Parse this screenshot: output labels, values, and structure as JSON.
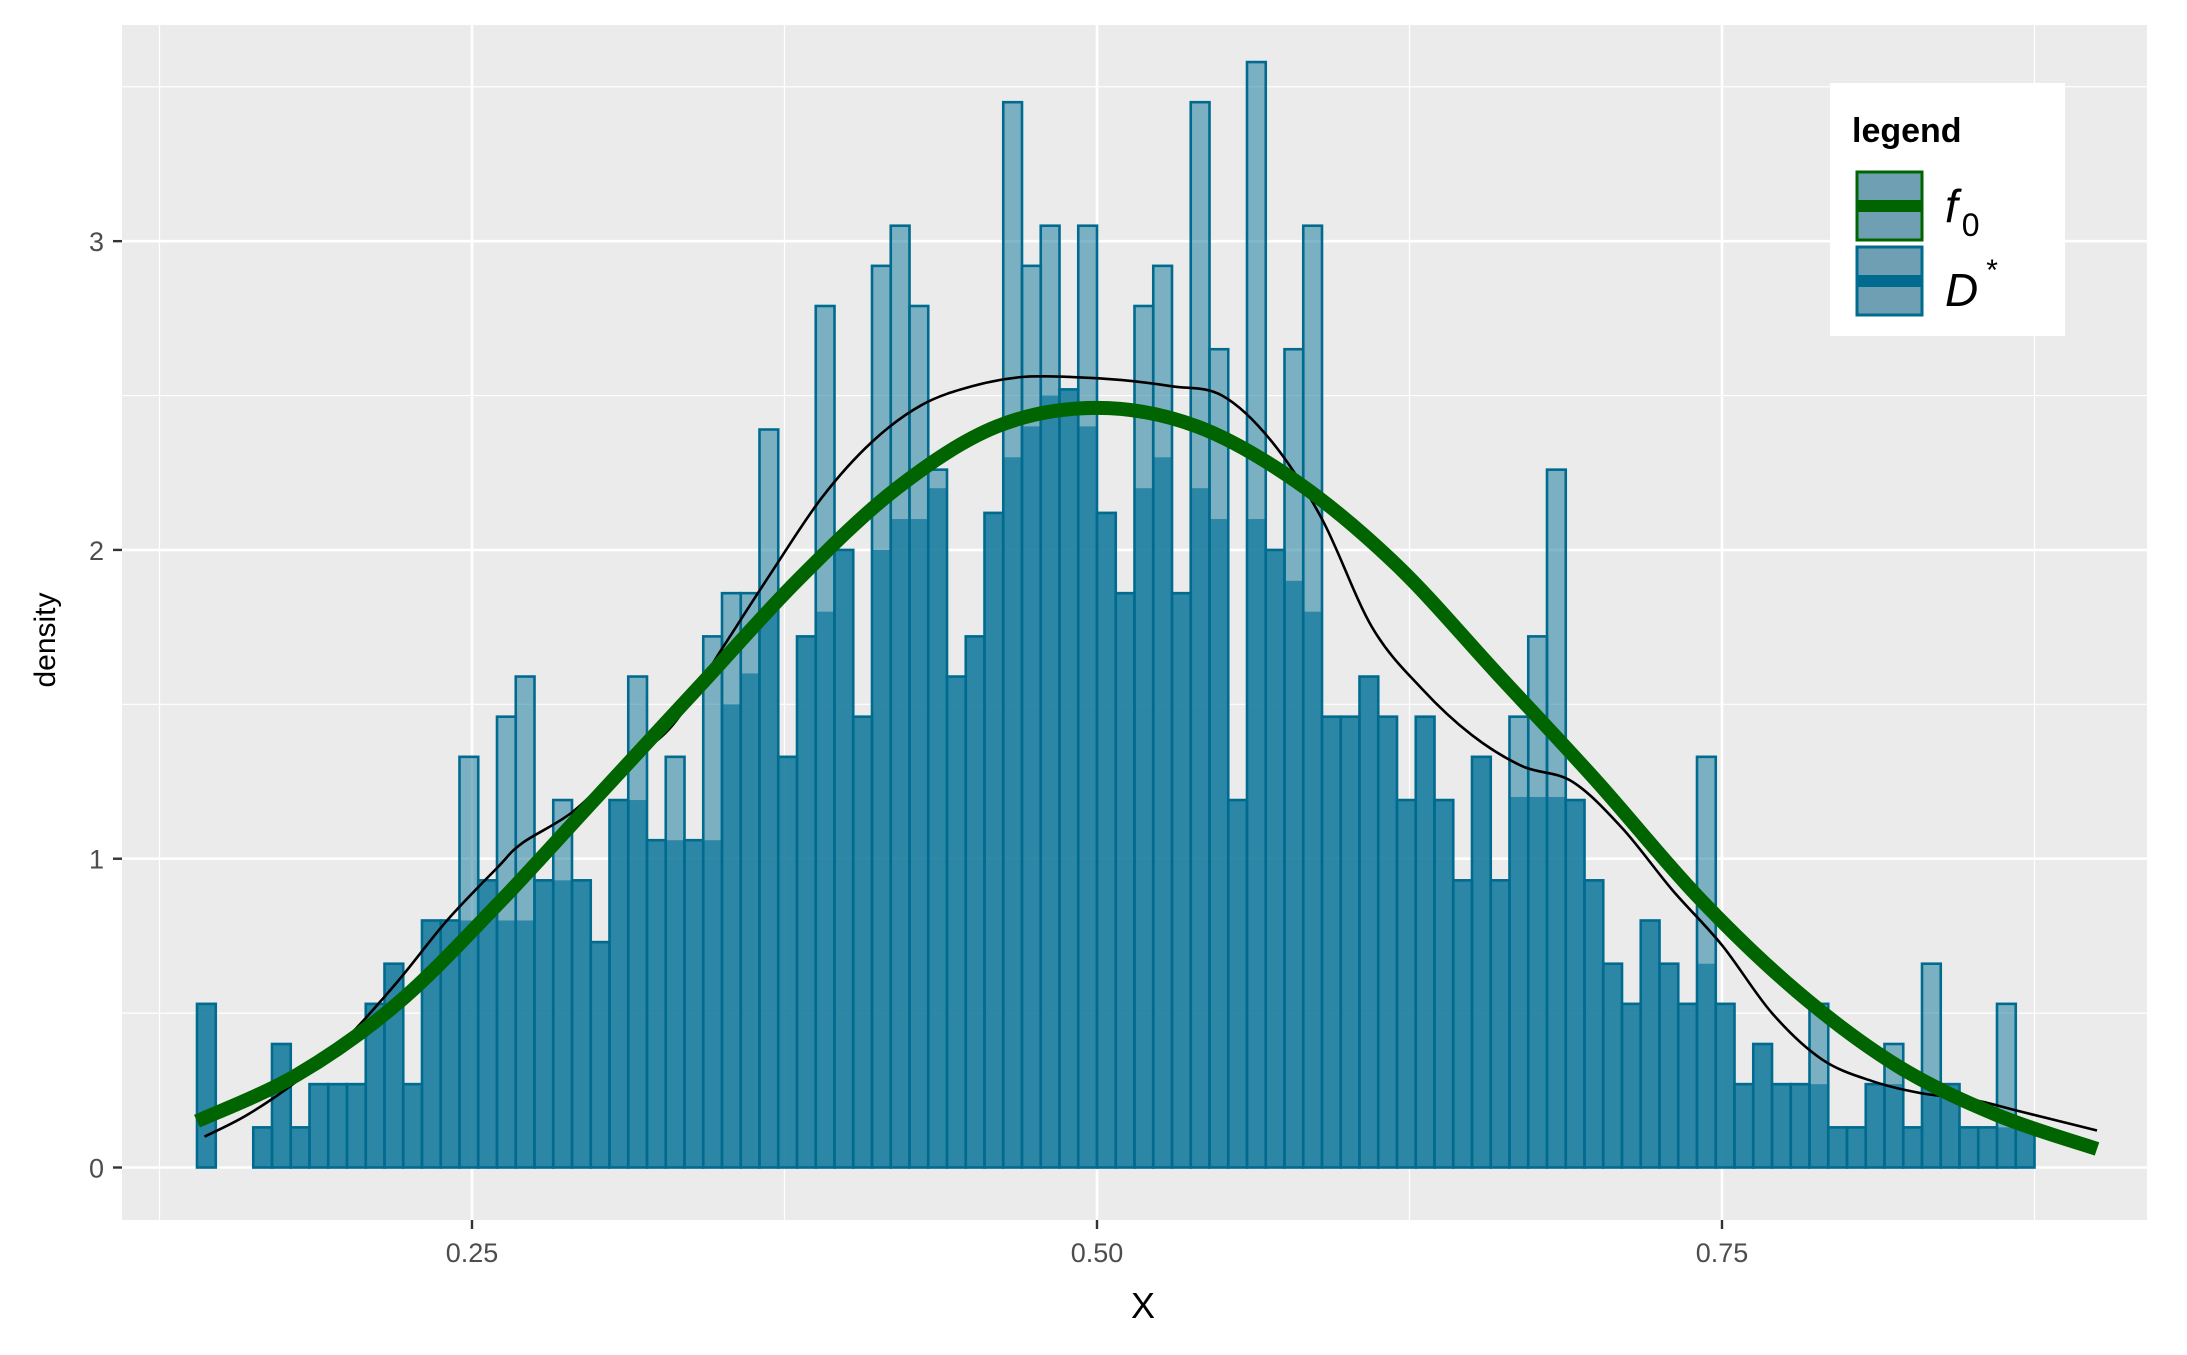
{
  "chart_data": {
    "type": "histogram",
    "xlabel": "X",
    "ylabel": "density",
    "xlim": [
      0.11,
      0.92
    ],
    "ylim": [
      -0.17,
      3.7
    ],
    "x_ticks": [
      0.25,
      0.5,
      0.75
    ],
    "x_tick_labels": [
      "0.25",
      "0.50",
      "0.75"
    ],
    "y_ticks": [
      0,
      1,
      2,
      3
    ],
    "y_tick_labels": [
      "0",
      "1",
      "2",
      "3"
    ],
    "grid": true,
    "legend": {
      "title": "legend",
      "position": "top-right",
      "entries": [
        {
          "label": "f",
          "subscript": "0",
          "color": "#006400"
        },
        {
          "label": "D",
          "superscript": "*",
          "color": "#006b8f"
        }
      ]
    },
    "histogram": {
      "name": "D*",
      "bin_start": 0.14,
      "bin_width": 0.0075,
      "fill_color": "#1f7fa0",
      "outline_color": "#006b8f",
      "densities": [
        0.53,
        0.0,
        0.0,
        0.13,
        0.4,
        0.13,
        0.27,
        0.27,
        0.27,
        0.53,
        0.66,
        0.27,
        0.8,
        0.8,
        1.33,
        0.93,
        1.46,
        1.59,
        0.93,
        1.19,
        0.93,
        0.73,
        1.19,
        1.59,
        1.06,
        1.33,
        1.06,
        1.72,
        1.86,
        1.86,
        2.39,
        1.33,
        1.72,
        2.79,
        2.0,
        1.46,
        2.92,
        3.05,
        2.79,
        2.26,
        1.59,
        1.72,
        2.12,
        3.45,
        2.92,
        3.05,
        2.52,
        3.05,
        2.12,
        1.86,
        2.79,
        2.92,
        1.86,
        3.45,
        2.65,
        1.19,
        3.58,
        2.0,
        2.65,
        3.05,
        1.46,
        1.46,
        1.59,
        1.46,
        1.19,
        1.46,
        1.19,
        0.93,
        1.33,
        0.93,
        1.46,
        1.72,
        2.26,
        1.19,
        0.93,
        0.66,
        0.53,
        0.8,
        0.66,
        0.53,
        1.33,
        0.53,
        0.27,
        0.4,
        0.27,
        0.27,
        0.53,
        0.13,
        0.13,
        0.27,
        0.4,
        0.13,
        0.66,
        0.27,
        0.13,
        0.13,
        0.53,
        0.13
      ]
    },
    "bar_overlay": [
      0.53,
      0.0,
      0.0,
      0.13,
      0.4,
      0.13,
      0.27,
      0.27,
      0.27,
      0.53,
      0.66,
      0.27,
      0.8,
      0.8,
      0.8,
      0.93,
      0.8,
      0.8,
      0.93,
      0.93,
      0.93,
      0.73,
      1.19,
      1.19,
      1.06,
      1.06,
      1.06,
      1.06,
      1.5,
      1.6,
      1.8,
      1.33,
      1.72,
      1.8,
      2.0,
      1.46,
      2.0,
      2.1,
      2.1,
      2.2,
      1.59,
      1.72,
      2.12,
      2.3,
      2.4,
      2.5,
      2.52,
      2.4,
      2.12,
      1.86,
      2.2,
      2.3,
      1.86,
      2.2,
      2.1,
      1.19,
      2.1,
      2.0,
      1.9,
      1.8,
      1.46,
      1.46,
      1.59,
      1.46,
      1.19,
      1.46,
      1.19,
      0.93,
      1.33,
      0.93,
      1.2,
      1.2,
      1.2,
      1.19,
      0.93,
      0.66,
      0.53,
      0.8,
      0.66,
      0.53,
      0.66,
      0.53,
      0.27,
      0.4,
      0.27,
      0.27,
      0.27,
      0.13,
      0.13,
      0.27,
      0.27,
      0.13,
      0.27,
      0.27,
      0.13,
      0.13,
      0.13,
      0.13
    ],
    "series": [
      {
        "name": "f0",
        "color": "#006400",
        "x": [
          0.14,
          0.18,
          0.22,
          0.26,
          0.3,
          0.34,
          0.38,
          0.42,
          0.46,
          0.5,
          0.54,
          0.58,
          0.62,
          0.66,
          0.7,
          0.74,
          0.78,
          0.82,
          0.86,
          0.9
        ],
        "y": [
          0.15,
          0.3,
          0.53,
          0.85,
          1.2,
          1.55,
          1.9,
          2.2,
          2.4,
          2.46,
          2.4,
          2.22,
          1.95,
          1.6,
          1.25,
          0.88,
          0.57,
          0.33,
          0.17,
          0.06
        ]
      },
      {
        "x": [
          0.143,
          0.16,
          0.18,
          0.2,
          0.22,
          0.24,
          0.26,
          0.27,
          0.29,
          0.31,
          0.33,
          0.35,
          0.37,
          0.39,
          0.41,
          0.43,
          0.45,
          0.47,
          0.49,
          0.51,
          0.53,
          0.55,
          0.57,
          0.59,
          0.61,
          0.63,
          0.65,
          0.67,
          0.69,
          0.71,
          0.73,
          0.75,
          0.77,
          0.79,
          0.81,
          0.83,
          0.85,
          0.87,
          0.9
        ],
        "y": [
          0.1,
          0.17,
          0.28,
          0.42,
          0.6,
          0.8,
          0.97,
          1.05,
          1.15,
          1.3,
          1.43,
          1.68,
          1.93,
          2.17,
          2.35,
          2.47,
          2.53,
          2.56,
          2.56,
          2.55,
          2.53,
          2.5,
          2.35,
          2.1,
          1.75,
          1.55,
          1.4,
          1.3,
          1.25,
          1.1,
          0.9,
          0.72,
          0.5,
          0.35,
          0.28,
          0.24,
          0.22,
          0.18,
          0.12
        ]
      }
    ]
  }
}
